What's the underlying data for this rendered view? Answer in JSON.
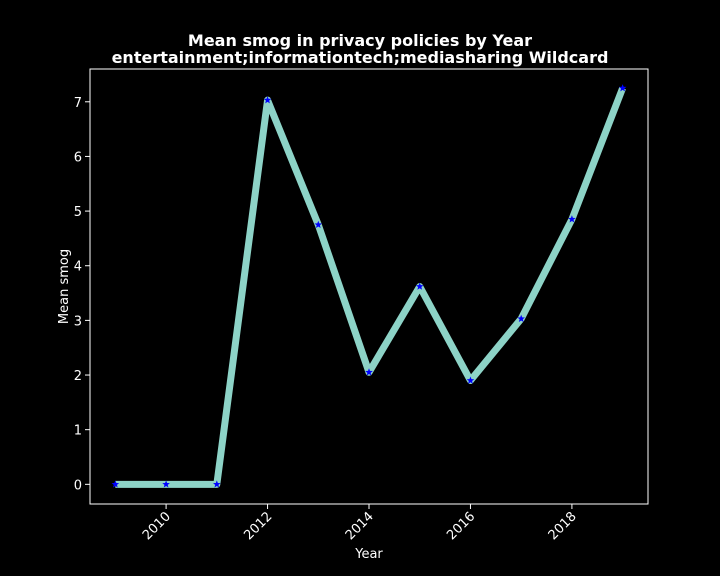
{
  "chart_data": {
    "type": "line",
    "title_lines": [
      "Mean smog in privacy policies by Year",
      "entertainment;informationtech;mediasharing Wildcard"
    ],
    "xlabel": "Year",
    "ylabel": "Mean smog",
    "x": [
      2009,
      2010,
      2011,
      2012,
      2013,
      2014,
      2015,
      2016,
      2017,
      2018,
      2019
    ],
    "series": [
      {
        "values": [
          0,
          0,
          0,
          7.03,
          4.75,
          2.05,
          3.62,
          1.9,
          3.03,
          4.85,
          7.25
        ],
        "line_color": "#8dd3c7",
        "marker": "star",
        "marker_color": "#0000ff"
      }
    ],
    "xlim": [
      2008.5,
      2019.5
    ],
    "ylim": [
      -0.36,
      7.6
    ],
    "x_ticks": [
      2010,
      2012,
      2014,
      2016,
      2018
    ],
    "x_tick_labels": [
      "2010",
      "2012",
      "2014",
      "2016",
      "2018"
    ],
    "y_ticks": [
      0,
      1,
      2,
      3,
      4,
      5,
      6,
      7
    ],
    "y_tick_labels": [
      "0",
      "1",
      "2",
      "3",
      "4",
      "5",
      "6",
      "7"
    ],
    "grid": false,
    "background": "#000000",
    "axes_color": "#ffffff"
  }
}
